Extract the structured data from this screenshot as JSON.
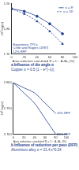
{
  "chart_data": [
    {
      "type": "line",
      "title": "a Influence of die angle α",
      "subtitle": "Copper σ = 0.5 (1 − e^(−ε))",
      "x_label": "Area reduction cumulated R = 1 − A₀/Aₙ (%)",
      "y_label": "10³ log(σ)",
      "xlim": [
        0,
        100
      ],
      "xticks": [
        0,
        20,
        40,
        60,
        80,
        100
      ],
      "ylim": [
        1.7,
        1.9
      ],
      "yticks": [
        {
          "value": 1.7,
          "label": "1.70"
        },
        {
          "value": 1.8,
          "label": "1.80"
        },
        {
          "value": 1.9,
          "label": "1.90"
        }
      ],
      "legend": "upper right",
      "annotations": [
        "Experience TPCs",
        "Cetlin and Rogers (1987)",
        "12% RFP"
      ],
      "series": [
        {
          "name": "α = 8°",
          "color": "#1f3f8f",
          "marker": "circle",
          "line_style": "solid",
          "x": [
            0,
            20,
            40,
            60,
            80
          ],
          "values": [
            1.88,
            1.87,
            1.85,
            1.82,
            1.78
          ]
        },
        {
          "name": "α = 16°",
          "color": "#1f3f8f",
          "marker": "triangle",
          "line_style": "dashed",
          "x": [
            0,
            20,
            40,
            60,
            80
          ],
          "values": [
            1.88,
            1.86,
            1.83,
            1.79,
            1.74
          ]
        }
      ]
    },
    {
      "type": "line",
      "title": "b Influence of reduction per pass (RFP)",
      "subtitle": "Aluminium alloy σ = 21.4 ε^0.24",
      "x_label": "Area reduction cumulated R = 1 − A₀/Aₙ (%)",
      "y_label": "10³ log(σ)",
      "xlim": [
        0,
        100
      ],
      "xticks": [
        0,
        20,
        40,
        60,
        80,
        100
      ],
      "ylim": [
        2.7,
        2.8
      ],
      "yticks": [
        {
          "value": 2.7,
          "label": "2.700"
        },
        {
          "value": 2.75,
          "label": "2.750"
        },
        {
          "value": 2.8,
          "label": "2.800"
        }
      ],
      "series": [
        {
          "name": "15% RFP",
          "color": "#1f3f8f",
          "marker": "none",
          "line_style": "solid",
          "x": [
            0,
            20,
            40,
            60,
            80
          ],
          "values": [
            2.8,
            2.79,
            2.78,
            2.76,
            2.74
          ]
        },
        {
          "name": "25% RFP",
          "color": "#1f3f8f",
          "marker": "none",
          "line_style": "solid",
          "x": [
            0,
            20,
            40,
            60,
            80
          ],
          "values": [
            2.8,
            2.78,
            2.76,
            2.73,
            2.7
          ]
        }
      ]
    }
  ]
}
